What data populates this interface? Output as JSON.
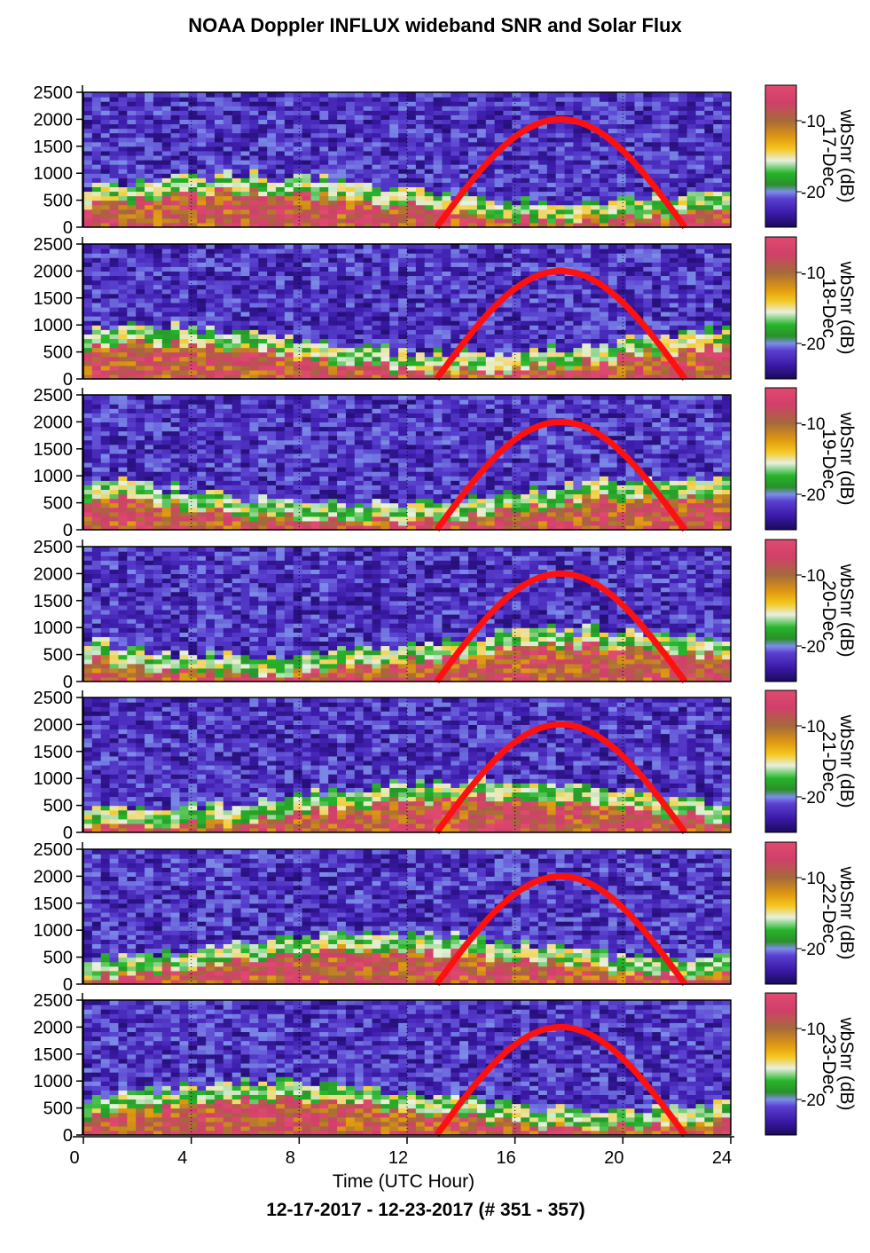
{
  "title": "NOAA Doppler INFLUX wideband SNR and Solar Flux",
  "footer": "12-17-2017 - 12-23-2017   (# 351 - 357)",
  "colors": {
    "solar_curve": "#ff1010",
    "colormap": [
      "#1a0a5c",
      "#3b1aa8",
      "#5a40d0",
      "#7d8ee8",
      "#2a8f2a",
      "#25b52a",
      "#e8f0e0",
      "#f5c820",
      "#e09a10",
      "#a56a3a",
      "#d0406a",
      "#e04a70"
    ]
  },
  "chart_data": {
    "type": "heatmap",
    "xlabel": "Time (UTC Hour)",
    "x_ticks": [
      "0",
      "4",
      "8",
      "12",
      "16",
      "20",
      "24"
    ],
    "xlim": [
      0,
      24
    ],
    "ylim": [
      0,
      2500
    ],
    "y_ticks": [
      "0",
      "500",
      "1000",
      "1500",
      "2000",
      "2500"
    ],
    "grid": "dotted vertical lines at 4-hour intervals",
    "colorbar_label": "wbSnr (dB)",
    "panels": [
      {
        "date_label": "17-Dec",
        "colorbar_ticks": [
          "-10",
          "-20"
        ],
        "solar_curve": {
          "start_hour": 13.1,
          "peak_hour": 17.7,
          "end_hour": 22.3,
          "peak_value": 2000
        }
      },
      {
        "date_label": "18-Dec",
        "colorbar_ticks": [
          "-10",
          "-20"
        ],
        "solar_curve": {
          "start_hour": 13.1,
          "peak_hour": 17.7,
          "end_hour": 22.3,
          "peak_value": 2000
        }
      },
      {
        "date_label": "19-Dec",
        "colorbar_ticks": [
          "-10",
          "-20"
        ],
        "solar_curve": {
          "start_hour": 13.1,
          "peak_hour": 17.7,
          "end_hour": 22.3,
          "peak_value": 2000
        }
      },
      {
        "date_label": "20-Dec",
        "colorbar_ticks": [
          "-10",
          "-20"
        ],
        "solar_curve": {
          "start_hour": 13.1,
          "peak_hour": 17.7,
          "end_hour": 22.3,
          "peak_value": 2000
        }
      },
      {
        "date_label": "21-Dec",
        "colorbar_ticks": [
          "-10",
          "-20"
        ],
        "solar_curve": {
          "start_hour": 13.1,
          "peak_hour": 17.7,
          "end_hour": 22.3,
          "peak_value": 2000
        }
      },
      {
        "date_label": "22-Dec",
        "colorbar_ticks": [
          "-10",
          "-20"
        ],
        "solar_curve": {
          "start_hour": 13.1,
          "peak_hour": 17.7,
          "end_hour": 22.3,
          "peak_value": 2000
        }
      },
      {
        "date_label": "23-Dec",
        "colorbar_ticks": [
          "-10",
          "-20"
        ],
        "solar_curve": {
          "start_hour": 13.1,
          "peak_hour": 17.7,
          "end_hour": 22.3,
          "peak_value": 2000
        }
      }
    ]
  }
}
